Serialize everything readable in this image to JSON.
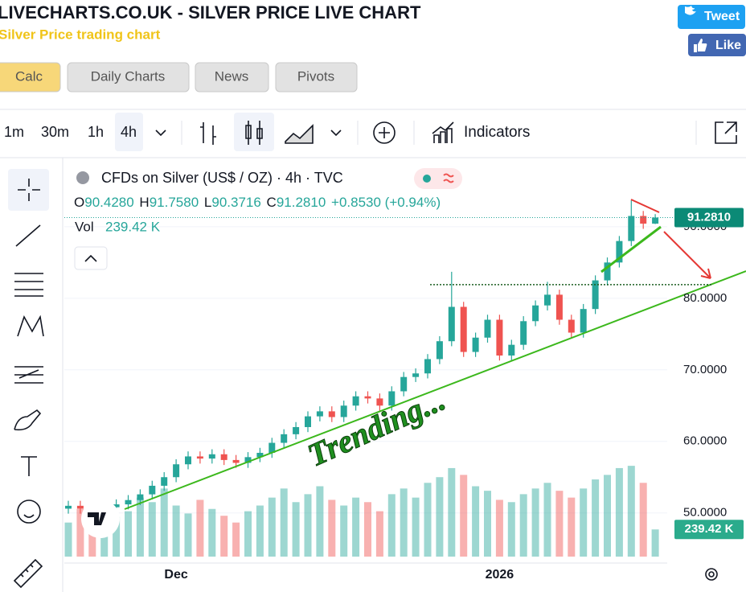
{
  "header": {
    "title": "LIVECHARTS.CO.UK - SILVER PRICE LIVE CHART",
    "subtitle": "Silver Price trading chart"
  },
  "social": {
    "tweet": "Tweet",
    "like": "Like"
  },
  "tabs": [
    "Calc",
    "Daily Charts",
    "News",
    "Pivots"
  ],
  "toolbar": {
    "intervals": [
      "1m",
      "30m",
      "1h",
      "4h"
    ],
    "indicators": "Indicators"
  },
  "chart_data": {
    "type": "candlestick",
    "title": "CFDs on Silver (US$ / OZ) · 4h · TVC",
    "legend": {
      "o_label": "O",
      "open": "90.4280",
      "h_label": "H",
      "high": "91.7580",
      "l_label": "L",
      "low": "90.3716",
      "c_label": "C",
      "close": "91.2810",
      "change": "+0.8530 (+0.94%)"
    },
    "volume_label": "Vol",
    "categories": [
      null,
      null,
      null,
      null,
      null,
      null,
      null,
      null,
      null,
      "Dec",
      null,
      null,
      null,
      null,
      null,
      null,
      null,
      null,
      null,
      null,
      null,
      null,
      null,
      null,
      null,
      null,
      null,
      null,
      null,
      null,
      null,
      null,
      null,
      null,
      null,
      null,
      "2026",
      null,
      null,
      null,
      null,
      null,
      null,
      null,
      null,
      null,
      null,
      null,
      null,
      null
    ],
    "open": [
      50.6,
      51.0,
      50.6,
      50.3,
      50.8,
      51.2,
      51.8,
      52.6,
      53.8,
      55.0,
      56.8,
      57.9,
      57.6,
      58.2,
      57.4,
      57.0,
      57.8,
      58.4,
      59.8,
      61.0,
      62.0,
      63.5,
      64.2,
      63.4,
      65.0,
      66.3,
      66.0,
      65.0,
      67.0,
      69.0,
      69.5,
      71.5,
      74.0,
      78.8,
      72.5,
      74.5,
      77.0,
      72.0,
      73.5,
      76.8,
      79.0,
      80.5,
      77.0,
      75.2,
      78.5,
      82.5,
      85.0,
      88.0,
      91.5,
      90.428
    ],
    "high": [
      51.7,
      51.7,
      51.3,
      51.5,
      51.9,
      52.5,
      53.3,
      54.5,
      55.7,
      57.5,
      58.6,
      58.6,
      58.9,
      58.9,
      58.1,
      58.5,
      59.1,
      60.5,
      61.7,
      62.7,
      64.2,
      64.9,
      64.9,
      65.7,
      67.0,
      67.0,
      66.7,
      67.7,
      69.7,
      70.2,
      72.2,
      74.7,
      83.7,
      79.5,
      75.2,
      77.7,
      77.7,
      74.2,
      77.5,
      79.7,
      82.3,
      81.2,
      77.7,
      79.2,
      83.2,
      85.7,
      88.7,
      93.7,
      92.2,
      91.758
    ],
    "low": [
      49.9,
      49.9,
      49.6,
      49.6,
      50.1,
      50.5,
      51.1,
      51.9,
      53.1,
      54.3,
      56.1,
      56.9,
      56.9,
      56.7,
      56.3,
      56.3,
      57.1,
      57.7,
      59.1,
      60.3,
      61.3,
      62.8,
      62.7,
      62.7,
      64.3,
      65.3,
      64.3,
      64.3,
      66.3,
      68.3,
      68.8,
      70.8,
      73.3,
      71.8,
      71.8,
      73.8,
      71.3,
      71.3,
      72.8,
      76.1,
      78.3,
      76.3,
      74.5,
      74.5,
      77.8,
      81.8,
      84.3,
      87.3,
      89.7,
      90.3716
    ],
    "close": [
      51.0,
      50.6,
      50.3,
      50.8,
      51.2,
      51.8,
      52.6,
      53.8,
      55.0,
      56.8,
      57.9,
      57.6,
      58.2,
      57.4,
      57.0,
      57.8,
      58.4,
      59.8,
      61.0,
      62.0,
      63.5,
      64.2,
      63.4,
      65.0,
      66.3,
      66.0,
      65.0,
      67.0,
      69.0,
      69.5,
      71.5,
      74.0,
      78.8,
      72.5,
      74.5,
      77.0,
      72.0,
      73.5,
      76.8,
      79.0,
      80.5,
      77.0,
      75.2,
      78.5,
      82.5,
      85.0,
      88.0,
      91.5,
      90.428,
      91.281
    ],
    "volume": [
      300,
      420,
      380,
      250,
      350,
      400,
      520,
      480,
      600,
      450,
      380,
      500,
      420,
      360,
      300,
      400,
      450,
      520,
      600,
      480,
      550,
      620,
      500,
      450,
      520,
      480,
      400,
      550,
      600,
      520,
      650,
      700,
      780,
      720,
      620,
      580,
      500,
      480,
      550,
      600,
      650,
      580,
      520,
      600,
      680,
      720,
      780,
      800,
      650,
      239.42
    ],
    "volume_lim": [
      0,
      900
    ],
    "up_color": "#26a69a",
    "down_color": "#ef5350",
    "ylim": [
      43.9,
      99.2
    ],
    "yticks": [
      {
        "value": 50,
        "label": "50.0000"
      },
      {
        "value": 60,
        "label": "60.0000"
      },
      {
        "value": 70,
        "label": "70.0000"
      },
      {
        "value": 80,
        "label": "80.0000"
      },
      {
        "value": 90,
        "label": "90.0000"
      }
    ],
    "last_price": {
      "value": 91.281,
      "label": "91.2810"
    },
    "last_volume": {
      "value": 239.42,
      "label": "239.42 K"
    },
    "level_line": 81.9,
    "annotation": "Trending..."
  }
}
